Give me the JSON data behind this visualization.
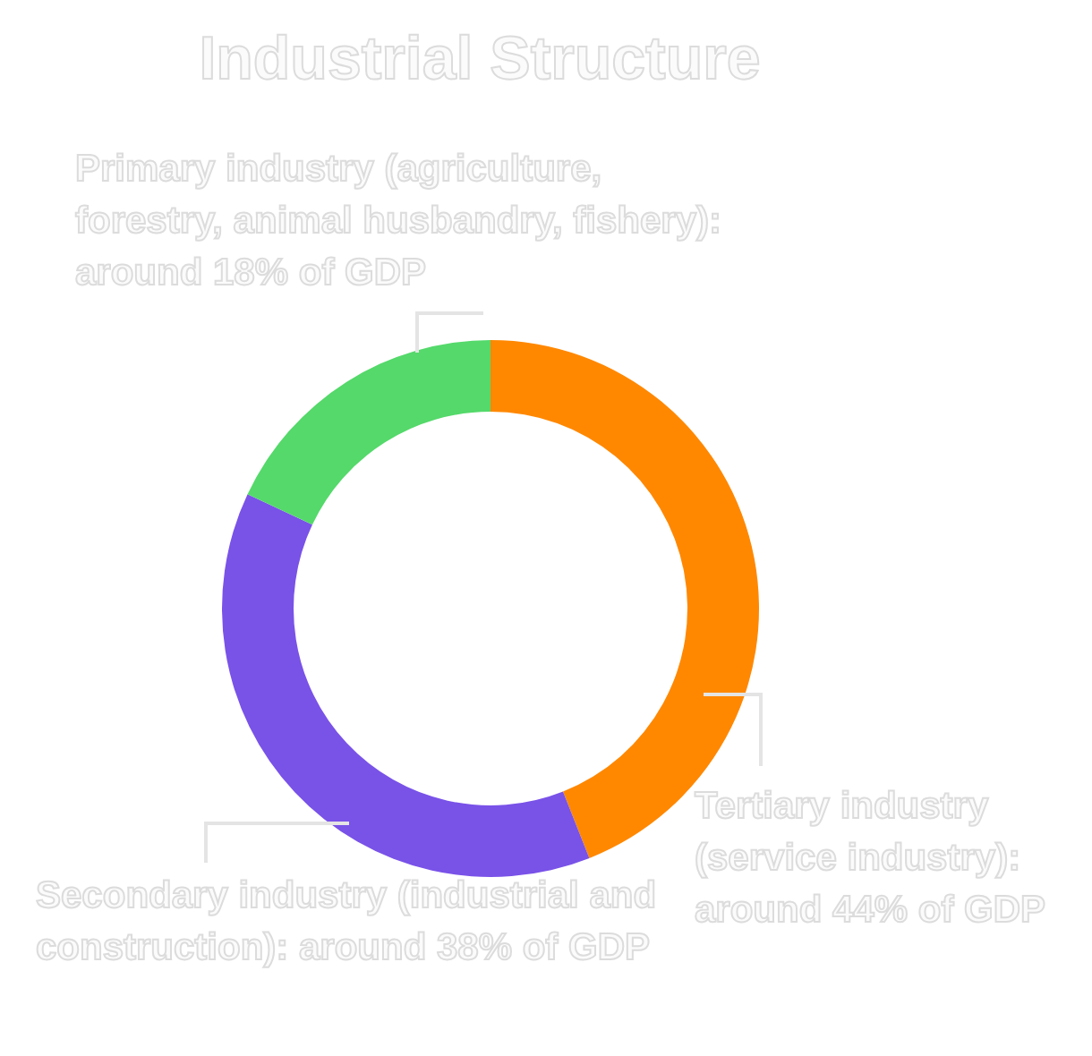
{
  "chart_data": {
    "type": "donut",
    "title": "Industrial Structure",
    "categories": [
      "Tertiary industry (service industry): around 44% of GDP",
      "Secondary industry (industrial and construction): around 38% of GDP",
      "Primary industry (agriculture, forestry, animal husbandry, fishery): around 18% of GDP"
    ],
    "values": [
      44,
      38,
      18
    ],
    "colors": [
      "#ff8800",
      "#7952e8",
      "#54d96a"
    ]
  }
}
